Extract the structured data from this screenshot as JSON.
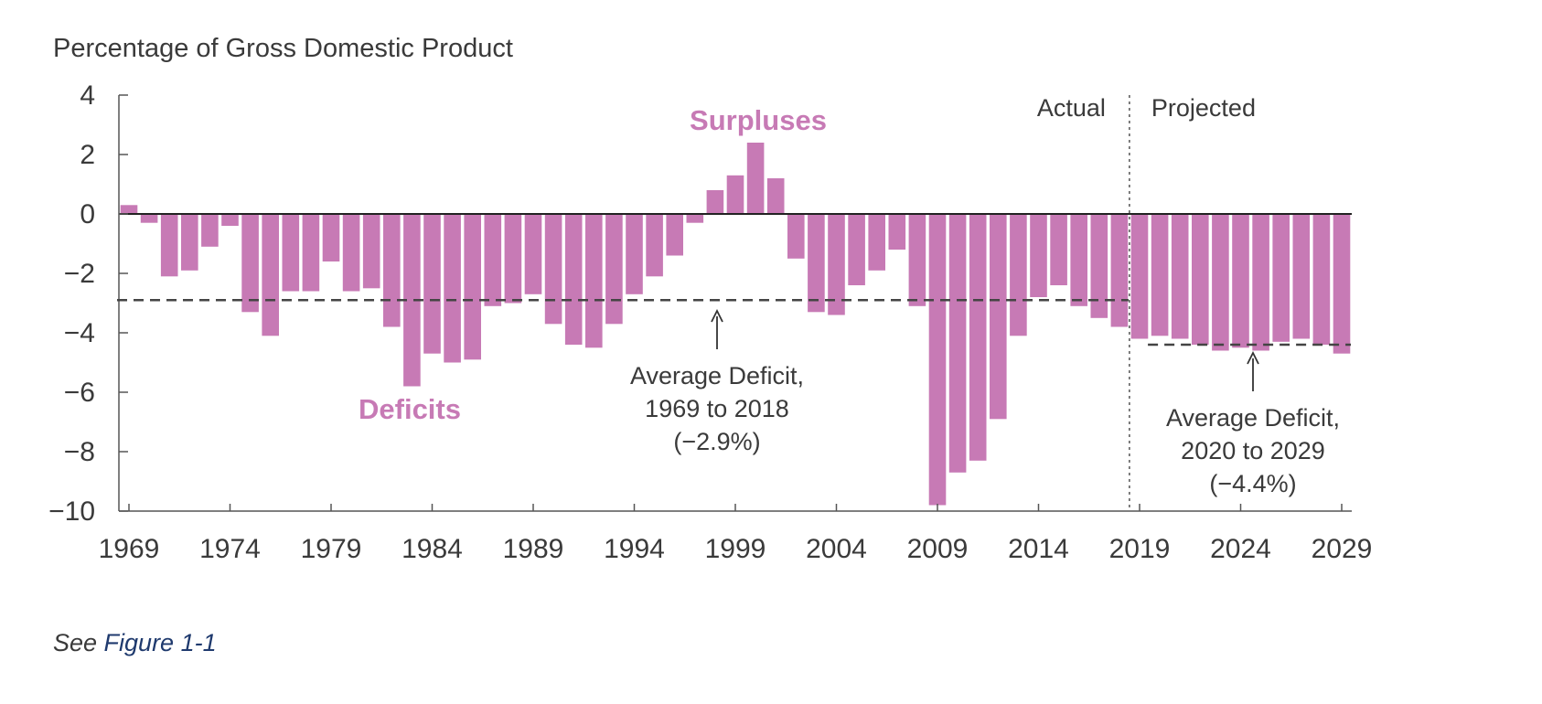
{
  "chart_data": {
    "type": "bar",
    "ylabel": "Percentage of Gross Domestic Product",
    "ylim": [
      -10,
      4
    ],
    "y_ticks": [
      "4",
      "2",
      "0",
      "−2",
      "−4",
      "−6",
      "−8",
      "−10"
    ],
    "x_ticks": [
      "1969",
      "1974",
      "1979",
      "1984",
      "1989",
      "1994",
      "1999",
      "2004",
      "2009",
      "2014",
      "2019",
      "2024",
      "2029"
    ],
    "grid": false,
    "color": "#c77ab5",
    "categories": [
      1969,
      1970,
      1971,
      1972,
      1973,
      1974,
      1975,
      1976,
      1977,
      1978,
      1979,
      1980,
      1981,
      1982,
      1983,
      1984,
      1985,
      1986,
      1987,
      1988,
      1989,
      1990,
      1991,
      1992,
      1993,
      1994,
      1995,
      1996,
      1997,
      1998,
      1999,
      2000,
      2001,
      2002,
      2003,
      2004,
      2005,
      2006,
      2007,
      2008,
      2009,
      2010,
      2011,
      2012,
      2013,
      2014,
      2015,
      2016,
      2017,
      2018,
      2019,
      2020,
      2021,
      2022,
      2023,
      2024,
      2025,
      2026,
      2027,
      2028,
      2029
    ],
    "values": [
      0.3,
      -0.3,
      -2.1,
      -1.9,
      -1.1,
      -0.4,
      -3.3,
      -4.1,
      -2.6,
      -2.6,
      -1.6,
      -2.6,
      -2.5,
      -3.8,
      -5.8,
      -4.7,
      -5.0,
      -4.9,
      -3.1,
      -3.0,
      -2.7,
      -3.7,
      -4.4,
      -4.5,
      -3.7,
      -2.7,
      -2.1,
      -1.4,
      -0.3,
      0.8,
      1.3,
      2.4,
      1.2,
      -1.5,
      -3.3,
      -3.4,
      -2.4,
      -1.9,
      -1.2,
      -3.1,
      -9.8,
      -8.7,
      -8.3,
      -6.9,
      -4.1,
      -2.8,
      -2.4,
      -3.1,
      -3.5,
      -3.8,
      -4.2,
      -4.1,
      -4.2,
      -4.4,
      -4.6,
      -4.5,
      -4.6,
      -4.3,
      -4.2,
      -4.4,
      -4.7
    ],
    "averages": [
      {
        "from": 1969,
        "to": 2018,
        "value": -2.9
      },
      {
        "from": 2020,
        "to": 2029,
        "value": -4.4
      }
    ],
    "divider_after": 2018,
    "annotations": {
      "surpluses": "Surpluses",
      "deficits": "Deficits",
      "actual": "Actual",
      "projected": "Projected",
      "avg1": [
        "Average Deficit,",
        "1969 to 2018",
        "(−2.9%)"
      ],
      "avg2": [
        "Average Deficit,",
        "2020 to 2029",
        "(−4.4%)"
      ]
    }
  },
  "footnote": {
    "see": "See ",
    "link": "Figure 1-1"
  }
}
